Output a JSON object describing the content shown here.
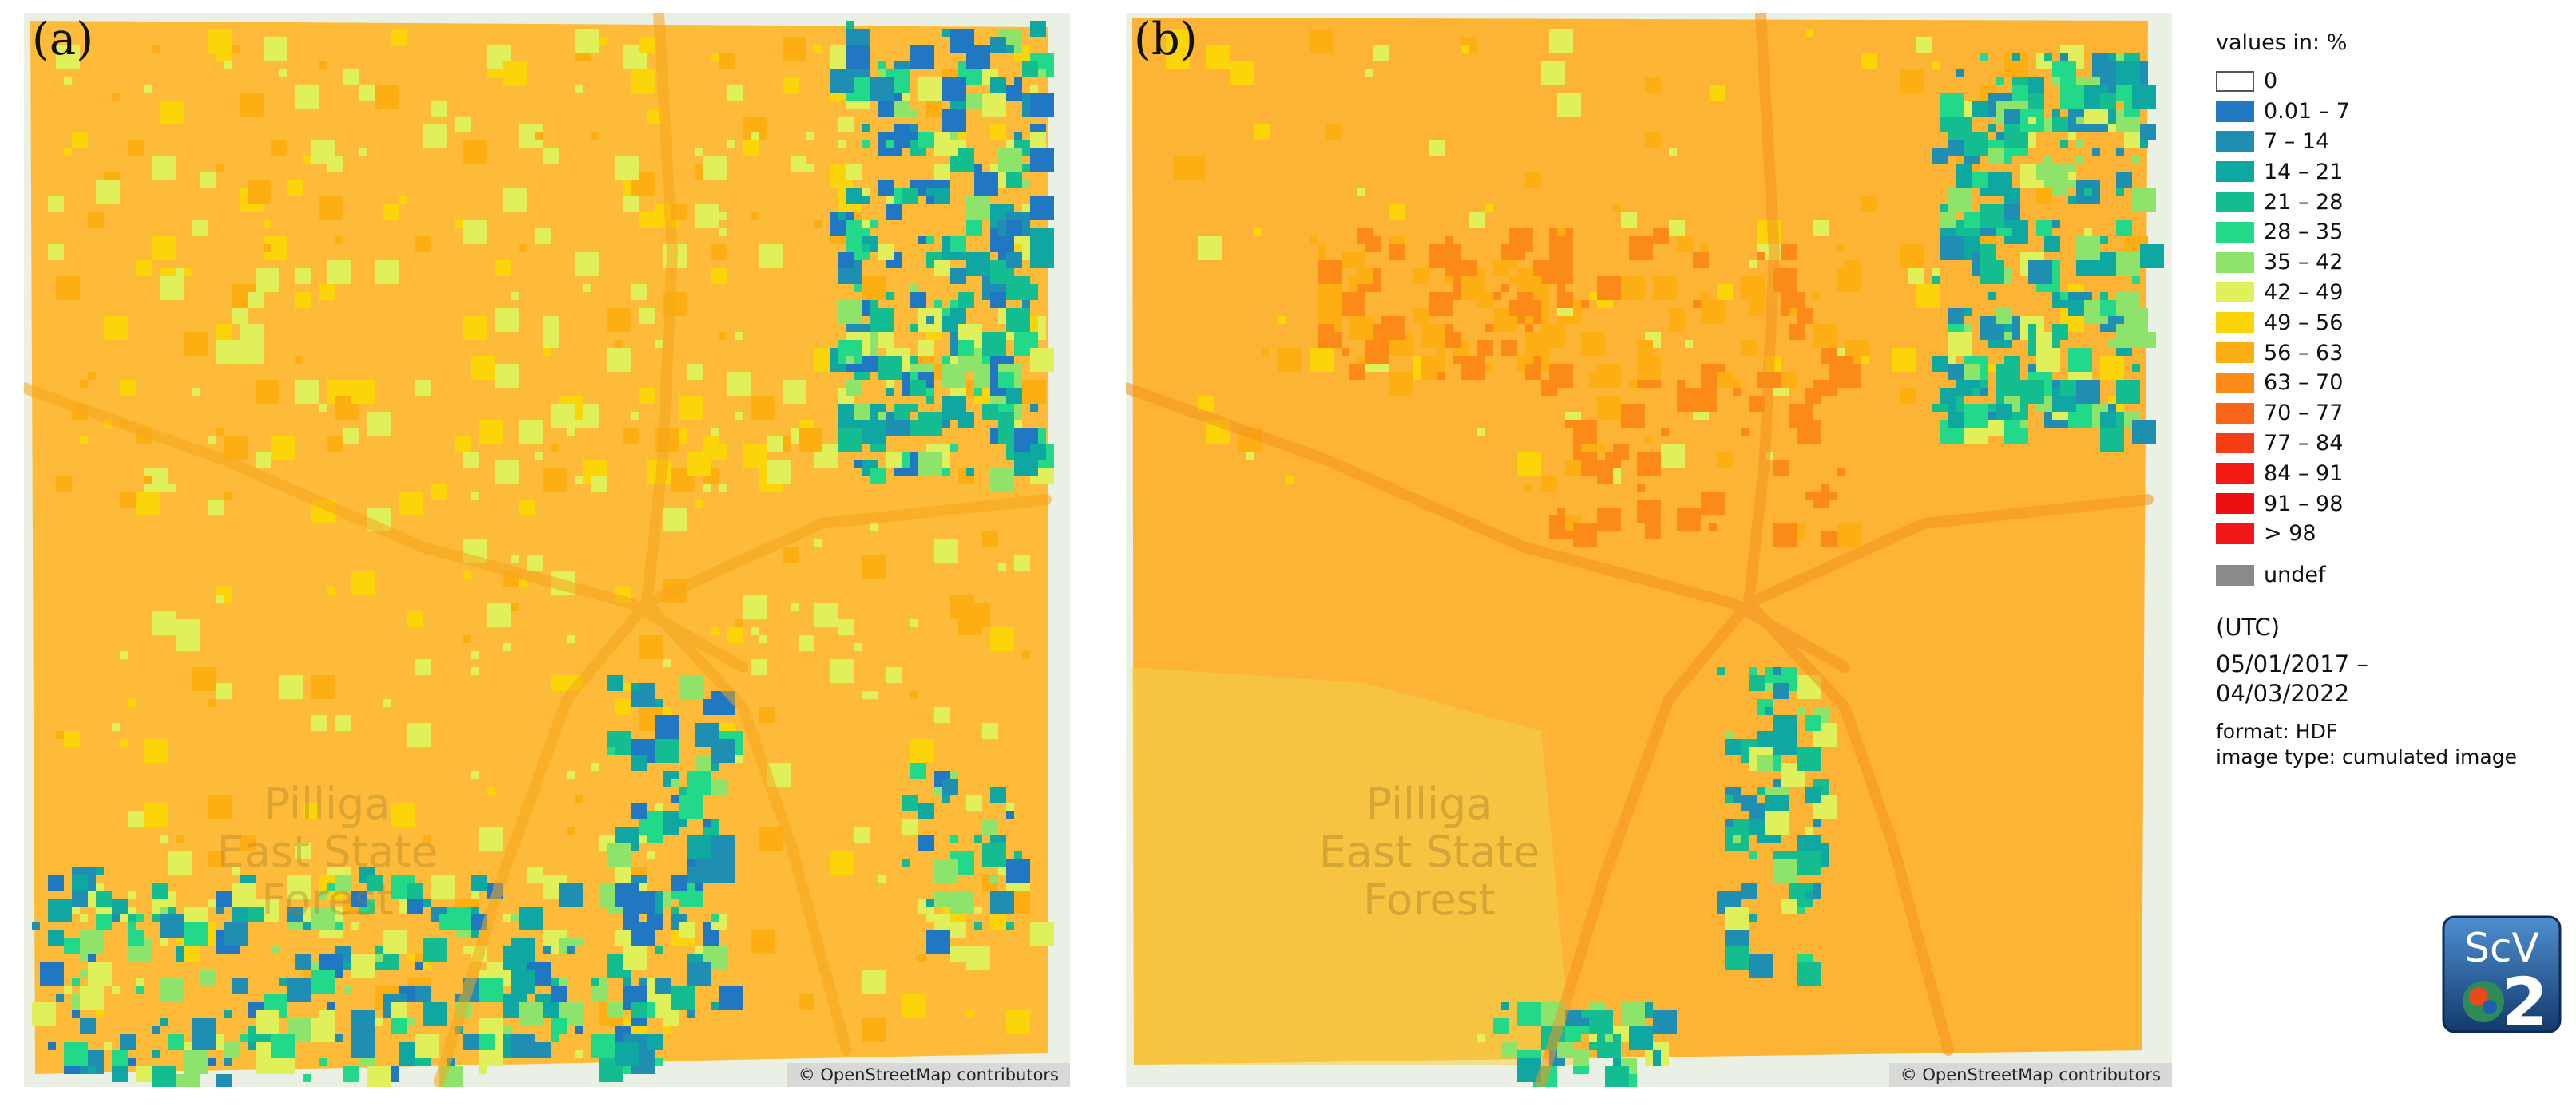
{
  "panels": [
    {
      "id": "a",
      "label": "(a)",
      "attribution": "© OpenStreetMap contributors",
      "place_label": [
        "Pilliga",
        "East State",
        "Forest"
      ]
    },
    {
      "id": "b",
      "label": "(b)",
      "attribution": "© OpenStreetMap contributors",
      "place_label": [
        "Pilliga",
        "East State",
        "Forest"
      ]
    }
  ],
  "legend": {
    "title": "values in: %",
    "classes": [
      {
        "label": "0",
        "color": "#ffffff"
      },
      {
        "label": "0.01 – 7",
        "color": "#1f78c1"
      },
      {
        "label": "7 – 14",
        "color": "#1e8fb3"
      },
      {
        "label": "14 – 21",
        "color": "#0fa7a2"
      },
      {
        "label": "21 – 28",
        "color": "#13bd8f"
      },
      {
        "label": "28 – 35",
        "color": "#22d889"
      },
      {
        "label": "35 – 42",
        "color": "#8ee46a"
      },
      {
        "label": "42 – 49",
        "color": "#dff05a"
      },
      {
        "label": "49 – 56",
        "color": "#fbd40a"
      },
      {
        "label": "56 – 63",
        "color": "#fdae12"
      },
      {
        "label": "63 – 70",
        "color": "#fb8a17"
      },
      {
        "label": "70 – 77",
        "color": "#f86518"
      },
      {
        "label": "77 – 84",
        "color": "#f63e16"
      },
      {
        "label": "84 – 91",
        "color": "#f21a12"
      },
      {
        "label": "91 – 98",
        "color": "#ee0f12"
      },
      {
        "label": "> 98",
        "color": "#f0161a"
      }
    ],
    "undef": {
      "label": "undef",
      "color": "#8a8a8a"
    }
  },
  "meta": {
    "timezone": "(UTC)",
    "range_start": "05/01/2017 –",
    "range_end": "04/03/2022",
    "format": "format: HDF",
    "image_type": "image type: cumulated image"
  },
  "logo": {
    "text_top": "ScV",
    "text_num": "2"
  }
}
